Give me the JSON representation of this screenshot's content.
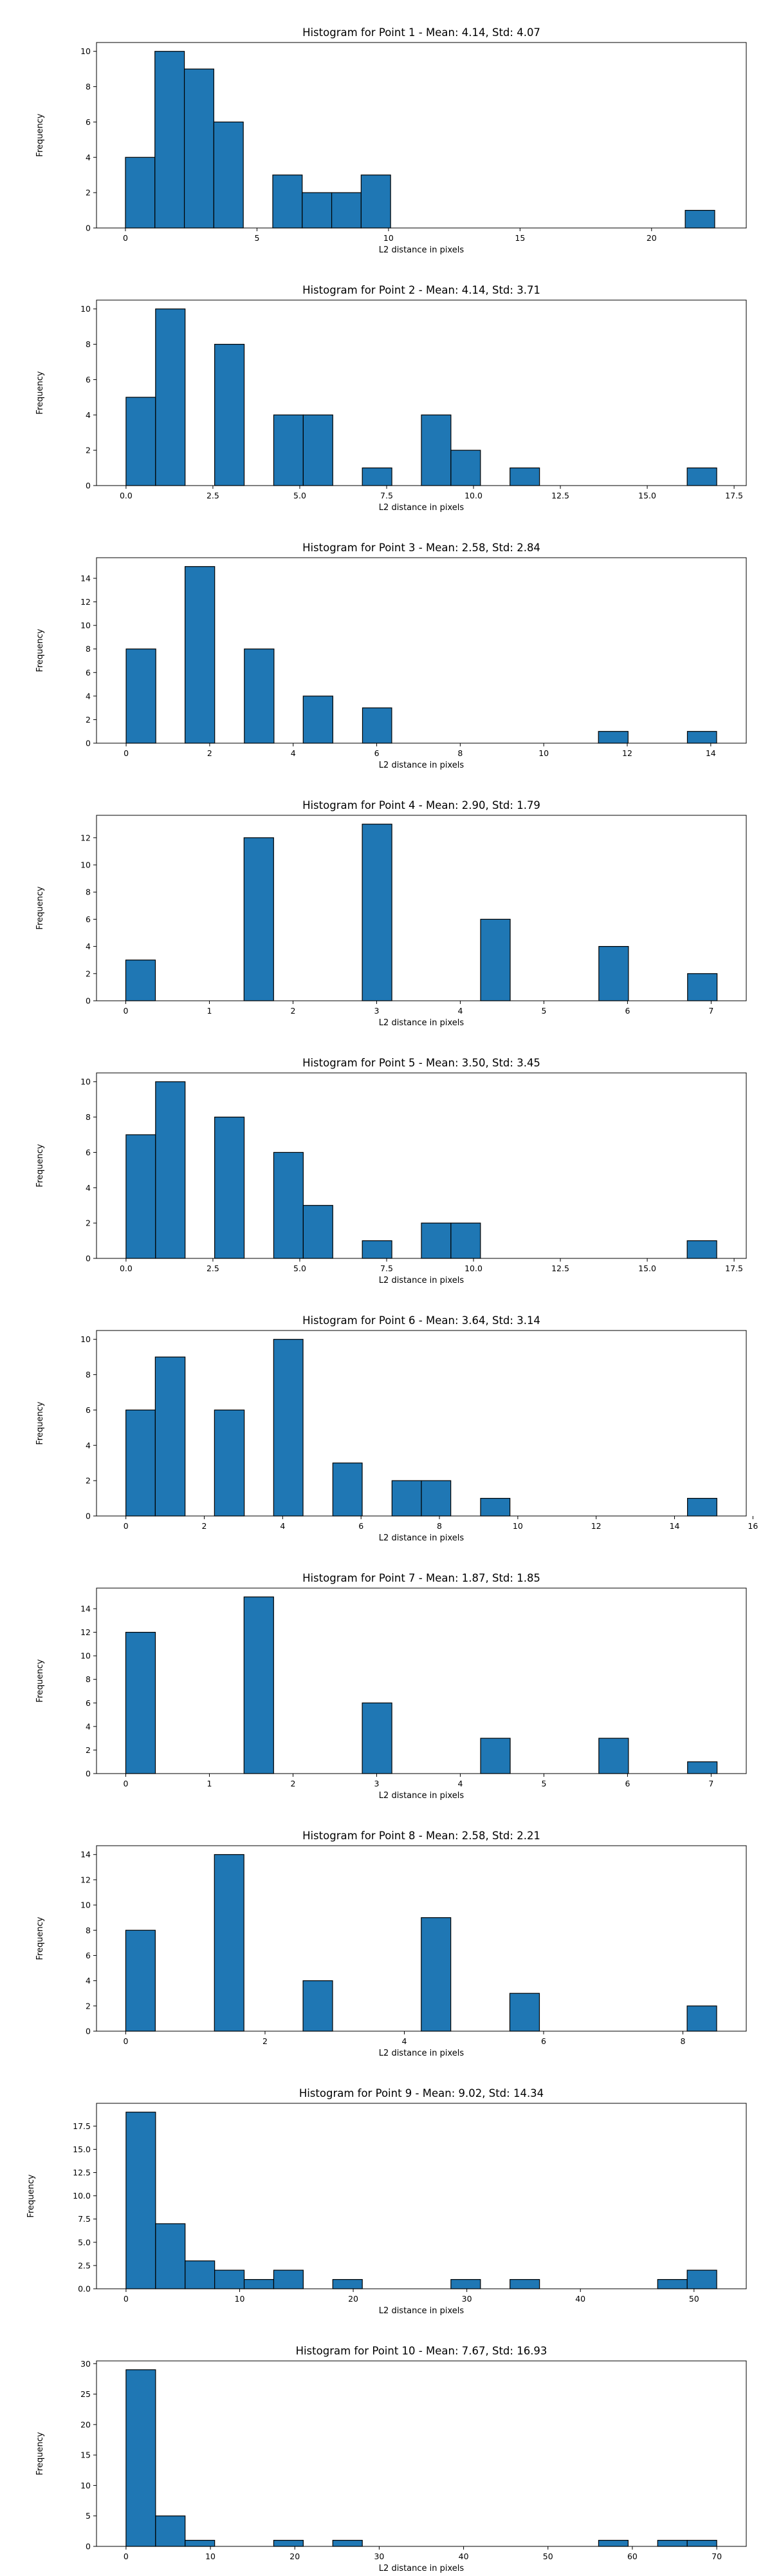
{
  "chart_data": [
    {
      "type": "bar",
      "title": "Histogram for Point 1 - Mean: 4.14, Std: 4.07",
      "xlabel": "L2 distance in pixels",
      "ylabel": "Frequency",
      "xlim": [
        -1.1,
        23.6
      ],
      "ylim": [
        0,
        10.5
      ],
      "xticks": [
        0,
        5,
        10,
        15,
        20
      ],
      "yticks": [
        0,
        2,
        4,
        6,
        8,
        10
      ],
      "bins": [
        [
          0,
          1.12,
          4
        ],
        [
          1.12,
          2.24,
          10
        ],
        [
          2.24,
          3.36,
          9
        ],
        [
          3.36,
          4.48,
          6
        ],
        [
          5.6,
          6.72,
          3
        ],
        [
          6.72,
          7.84,
          2
        ],
        [
          7.84,
          8.96,
          2
        ],
        [
          8.96,
          10.08,
          3
        ],
        [
          21.28,
          22.4,
          1
        ]
      ]
    },
    {
      "type": "bar",
      "title": "Histogram for Point 2 - Mean: 4.14, Std: 3.71",
      "xlabel": "L2 distance in pixels",
      "ylabel": "Frequency",
      "xlim": [
        -0.85,
        17.85
      ],
      "ylim": [
        0,
        10.5
      ],
      "xticks": [
        0.0,
        2.5,
        5.0,
        7.5,
        10.0,
        12.5,
        15.0,
        17.5
      ],
      "ytick_labels_decimals": 1,
      "yticks": [
        0,
        2,
        4,
        6,
        8,
        10
      ],
      "bins": [
        [
          0,
          0.85,
          5
        ],
        [
          0.85,
          1.7,
          10
        ],
        [
          2.55,
          3.4,
          8
        ],
        [
          4.25,
          5.1,
          4
        ],
        [
          5.1,
          5.95,
          4
        ],
        [
          6.8,
          7.65,
          1
        ],
        [
          8.5,
          9.35,
          4
        ],
        [
          9.35,
          10.2,
          2
        ],
        [
          11.05,
          11.9,
          1
        ],
        [
          16.15,
          17.0,
          1
        ]
      ]
    },
    {
      "type": "bar",
      "title": "Histogram for Point 3 - Mean: 2.58, Std: 2.84",
      "xlabel": "L2 distance in pixels",
      "ylabel": "Frequency",
      "xlim": [
        -0.71,
        14.85
      ],
      "ylim": [
        0,
        15.75
      ],
      "xticks": [
        0,
        2,
        4,
        6,
        8,
        10,
        12,
        14
      ],
      "yticks": [
        0,
        2,
        4,
        6,
        8,
        10,
        12,
        14
      ],
      "bins": [
        [
          0,
          0.71,
          8
        ],
        [
          1.41,
          2.12,
          15
        ],
        [
          2.83,
          3.54,
          8
        ],
        [
          4.24,
          4.95,
          4
        ],
        [
          5.66,
          6.36,
          3
        ],
        [
          11.31,
          12.02,
          1
        ],
        [
          13.44,
          14.14,
          1
        ]
      ]
    },
    {
      "type": "bar",
      "title": "Histogram for Point 4 - Mean: 2.90, Std: 1.79",
      "xlabel": "L2 distance in pixels",
      "ylabel": "Frequency",
      "xlim": [
        -0.35,
        7.42
      ],
      "ylim": [
        0,
        13.65
      ],
      "xticks": [
        0,
        1,
        2,
        3,
        4,
        5,
        6,
        7
      ],
      "yticks": [
        0,
        2,
        4,
        6,
        8,
        10,
        12
      ],
      "bins": [
        [
          0,
          0.354,
          3
        ],
        [
          1.414,
          1.768,
          12
        ],
        [
          2.828,
          3.182,
          13
        ],
        [
          4.243,
          4.597,
          6
        ],
        [
          5.657,
          6.011,
          4
        ],
        [
          6.718,
          7.071,
          2
        ]
      ]
    },
    {
      "type": "bar",
      "title": "Histogram for Point 5 - Mean: 3.50, Std: 3.45",
      "xlabel": "L2 distance in pixels",
      "ylabel": "Frequency",
      "xlim": [
        -0.85,
        17.85
      ],
      "ylim": [
        0,
        10.5
      ],
      "xticks": [
        0.0,
        2.5,
        5.0,
        7.5,
        10.0,
        12.5,
        15.0,
        17.5
      ],
      "yticks": [
        0,
        2,
        4,
        6,
        8,
        10
      ],
      "bins": [
        [
          0,
          0.85,
          7
        ],
        [
          0.85,
          1.7,
          10
        ],
        [
          2.55,
          3.4,
          8
        ],
        [
          4.25,
          5.1,
          6
        ],
        [
          5.1,
          5.95,
          3
        ],
        [
          6.8,
          7.65,
          1
        ],
        [
          8.5,
          9.35,
          2
        ],
        [
          9.35,
          10.2,
          2
        ],
        [
          16.15,
          17.0,
          1
        ]
      ]
    },
    {
      "type": "bar",
      "title": "Histogram for Point 6 - Mean: 3.64, Std: 3.14",
      "xlabel": "L2 distance in pixels",
      "ylabel": "Frequency",
      "xlim": [
        -0.75,
        15.83
      ],
      "ylim": [
        0,
        10.5
      ],
      "xticks": [
        0,
        2,
        4,
        6,
        8,
        10,
        12,
        14,
        16
      ],
      "yticks": [
        0,
        2,
        4,
        6,
        8,
        10
      ],
      "bins": [
        [
          0,
          0.75,
          6
        ],
        [
          0.75,
          1.51,
          9
        ],
        [
          2.26,
          3.02,
          6
        ],
        [
          3.77,
          4.52,
          10
        ],
        [
          5.28,
          6.03,
          3
        ],
        [
          6.79,
          7.54,
          2
        ],
        [
          7.54,
          8.29,
          2
        ],
        [
          9.05,
          9.8,
          1
        ],
        [
          14.33,
          15.08,
          1
        ]
      ]
    },
    {
      "type": "bar",
      "title": "Histogram for Point 7 - Mean: 1.87, Std: 1.85",
      "xlabel": "L2 distance in pixels",
      "ylabel": "Frequency",
      "xlim": [
        -0.35,
        7.42
      ],
      "ylim": [
        0,
        15.75
      ],
      "xticks": [
        0,
        1,
        2,
        3,
        4,
        5,
        6,
        7
      ],
      "yticks": [
        0,
        2,
        4,
        6,
        8,
        10,
        12,
        14
      ],
      "bins": [
        [
          0,
          0.354,
          12
        ],
        [
          1.414,
          1.768,
          15
        ],
        [
          2.828,
          3.182,
          6
        ],
        [
          4.243,
          4.597,
          3
        ],
        [
          5.657,
          6.011,
          3
        ],
        [
          6.718,
          7.071,
          1
        ]
      ]
    },
    {
      "type": "bar",
      "title": "Histogram for Point 8 - Mean: 2.58, Std: 2.21",
      "xlabel": "L2 distance in pixels",
      "ylabel": "Frequency",
      "xlim": [
        -0.42,
        8.91
      ],
      "ylim": [
        0,
        14.7
      ],
      "xticks": [
        0,
        2,
        4,
        6,
        8
      ],
      "yticks": [
        0,
        2,
        4,
        6,
        8,
        10,
        12,
        14
      ],
      "bins": [
        [
          0,
          0.424,
          8
        ],
        [
          1.273,
          1.697,
          14
        ],
        [
          2.546,
          2.97,
          4
        ],
        [
          4.243,
          4.667,
          9
        ],
        [
          5.515,
          5.94,
          3
        ],
        [
          8.061,
          8.485,
          2
        ]
      ]
    },
    {
      "type": "bar",
      "title": "Histogram for Point 9 - Mean: 9.02, Std: 14.34",
      "xlabel": "L2 distance in pixels",
      "ylabel": "Frequency",
      "xlim": [
        -2.6,
        54.6
      ],
      "ylim": [
        0,
        19.95
      ],
      "xticks": [
        0,
        10,
        20,
        30,
        40,
        50
      ],
      "ytick_decimals": 1,
      "yticks": [
        0.0,
        2.5,
        5.0,
        7.5,
        10.0,
        12.5,
        15.0,
        17.5
      ],
      "bins": [
        [
          0,
          2.6,
          19
        ],
        [
          2.6,
          5.2,
          7
        ],
        [
          5.2,
          7.8,
          3
        ],
        [
          7.8,
          10.4,
          2
        ],
        [
          10.4,
          13.0,
          1
        ],
        [
          13.0,
          15.6,
          2
        ],
        [
          18.2,
          20.8,
          1
        ],
        [
          28.6,
          31.2,
          1
        ],
        [
          33.8,
          36.4,
          1
        ],
        [
          46.8,
          49.4,
          1
        ],
        [
          49.4,
          52.0,
          2
        ]
      ]
    },
    {
      "type": "bar",
      "title": "Histogram for Point 10 - Mean: 7.67, Std: 16.93",
      "xlabel": "L2 distance in pixels",
      "ylabel": "Frequency",
      "xlim": [
        -3.5,
        73.5
      ],
      "ylim": [
        0,
        30.45
      ],
      "xticks": [
        0,
        10,
        20,
        30,
        40,
        50,
        60,
        70
      ],
      "yticks": [
        0,
        5,
        10,
        15,
        20,
        25,
        30
      ],
      "bins": [
        [
          0,
          3.5,
          29
        ],
        [
          3.5,
          7.0,
          5
        ],
        [
          7.0,
          10.5,
          1
        ],
        [
          17.5,
          21.0,
          1
        ],
        [
          24.5,
          28.0,
          1
        ],
        [
          56.0,
          59.5,
          1
        ],
        [
          63.0,
          66.5,
          1
        ],
        [
          66.5,
          70.0,
          1
        ]
      ]
    }
  ]
}
